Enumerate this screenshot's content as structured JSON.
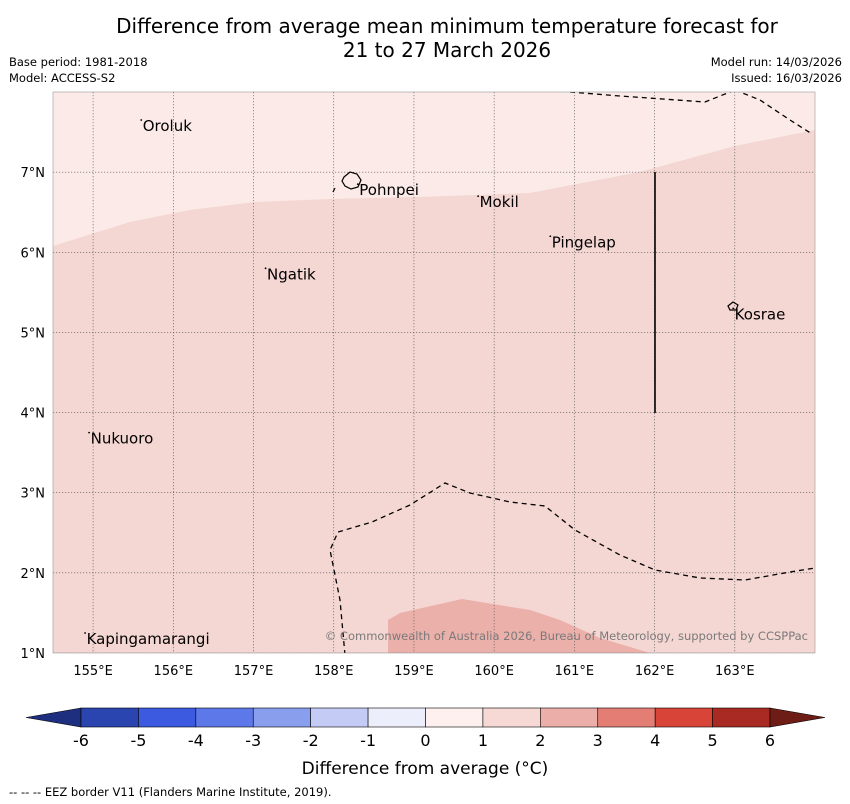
{
  "title": {
    "line1": "Difference from average mean minimum temperature forecast for",
    "line2": "21 to 27 March 2026"
  },
  "meta": {
    "base_period": "Base period: 1981-2018",
    "model": "Model: ACCESS-S2",
    "model_run": "Model run: 14/03/2026",
    "issued": "Issued: 16/03/2026"
  },
  "map": {
    "lon_range": [
      154.5,
      164.0
    ],
    "lat_range": [
      1.0,
      8.0
    ],
    "lon_ticks": [
      "155°E",
      "156°E",
      "157°E",
      "158°E",
      "159°E",
      "160°E",
      "161°E",
      "162°E",
      "163°E"
    ],
    "lat_ticks": [
      "7°N",
      "6°N",
      "5°N",
      "4°N",
      "3°N",
      "2°N",
      "1°N"
    ],
    "places": [
      {
        "name": "Oroluk",
        "lon": 155.6,
        "lat": 7.65
      },
      {
        "name": "Pohnpei",
        "lon": 158.3,
        "lat": 6.85
      },
      {
        "name": "Mokil",
        "lon": 159.8,
        "lat": 6.7
      },
      {
        "name": "Pingelap",
        "lon": 160.7,
        "lat": 6.2
      },
      {
        "name": "Ngatik",
        "lon": 157.15,
        "lat": 5.8
      },
      {
        "name": "Kosrae",
        "lon": 162.98,
        "lat": 5.3
      },
      {
        "name": "Nukuoro",
        "lon": 154.95,
        "lat": 3.75
      },
      {
        "name": "Kapingamarangi",
        "lon": 154.9,
        "lat": 1.25
      }
    ],
    "anomaly_bands": [
      {
        "range": "0 to 1",
        "color": "#fbeae8"
      },
      {
        "range": "1 to 2",
        "color": "#f4d6d2"
      },
      {
        "range": "2 to 3",
        "color": "#ecb0aa"
      }
    ],
    "copyright": "© Commonwealth of Australia 2026, Bureau of Meteorology, supported by CCSPPac"
  },
  "colorbar": {
    "labels": [
      "-6",
      "-5",
      "-4",
      "-3",
      "-2",
      "-1",
      "0",
      "1",
      "2",
      "3",
      "4",
      "5",
      "6"
    ],
    "colors": [
      "#1e2f80",
      "#2a44b0",
      "#3b5ae0",
      "#5d78e8",
      "#8a9eee",
      "#c4ccf5",
      "#eceefb",
      "#fdf0ee",
      "#f6d8d4",
      "#ecaea8",
      "#e47e74",
      "#d84438",
      "#a82a22",
      "#6e1c16"
    ],
    "title": "Difference from average (°C)"
  },
  "footnote": "--  --  -- EEZ border V11 (Flanders Marine Institute, 2019)."
}
